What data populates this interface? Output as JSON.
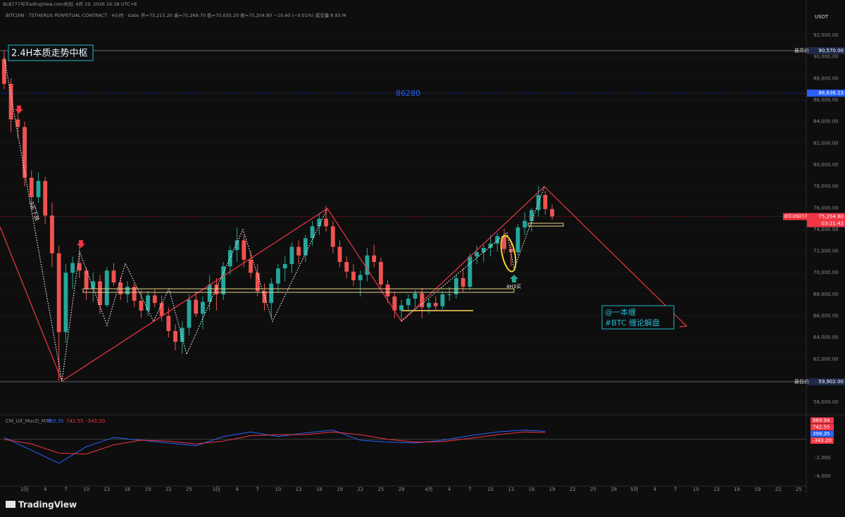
{
  "header": {
    "publisher": "BLB777与TradingView.com共创, 4月 19, 2026 16:38 UTC+8",
    "symbol_line": "BITCOIN · TETHERUS PERPETUAL CONTRACT · 4小时 · Gate",
    "ohlc_line": "开=75,215.20 高=75,269.70 低=75,035.20 收=75,204.80 −10.40 (−0.01%) 成交量 8.93 M"
  },
  "currency": "USDT",
  "footer": {
    "brand": "TradingView"
  },
  "annotations": {
    "center": "2.4H本质走势中枢",
    "level": "86280",
    "down": "3买下跌",
    "buy": "4H3买",
    "author": "@一本缠",
    "tag": "#BTC 缠论解盘"
  },
  "chart_data": [
    {
      "type": "candlestick",
      "up_color": "#26a69a",
      "down_color": "#ef5350",
      "x": [
        -3,
        -2,
        -1,
        0,
        1,
        2,
        3,
        4,
        5,
        6,
        7,
        8,
        9,
        10,
        11,
        12,
        13,
        14,
        15,
        16,
        17,
        18,
        19,
        20,
        21,
        22,
        23,
        24,
        25,
        26,
        27,
        28,
        29,
        30,
        31,
        32,
        33,
        34,
        35,
        36,
        37,
        38,
        39,
        40,
        41,
        42,
        43,
        44,
        45,
        46,
        47,
        48,
        49,
        50,
        51,
        52,
        53,
        54,
        55,
        56,
        57,
        58,
        59,
        60,
        61,
        62,
        63,
        64,
        65,
        66,
        67,
        68,
        69,
        70,
        71,
        72,
        73,
        74,
        75,
        76,
        77
      ],
      "ohlc": [
        [
          89800,
          90570,
          87000,
          87500
        ],
        [
          87500,
          88000,
          83000,
          84200
        ],
        [
          84200,
          85500,
          82500,
          83500
        ],
        [
          83500,
          84000,
          78000,
          78800
        ],
        [
          78800,
          79500,
          76000,
          77000
        ],
        [
          77000,
          79300,
          76500,
          78500
        ],
        [
          78500,
          78900,
          74500,
          75300
        ],
        [
          75300,
          76500,
          70500,
          71800
        ],
        [
          71800,
          72500,
          60000,
          64500
        ],
        [
          64500,
          70800,
          63500,
          70000
        ],
        [
          70000,
          71500,
          68500,
          70900
        ],
        [
          70900,
          72800,
          69500,
          70200
        ],
        [
          70200,
          70500,
          67500,
          68500
        ],
        [
          68500,
          70000,
          67300,
          69200
        ],
        [
          69200,
          69800,
          66200,
          67000
        ],
        [
          67000,
          70500,
          66800,
          70200
        ],
        [
          70200,
          70900,
          68800,
          69100
        ],
        [
          69100,
          69600,
          67500,
          68000
        ],
        [
          68000,
          69200,
          67200,
          68700
        ],
        [
          68700,
          69000,
          66800,
          67400
        ],
        [
          67400,
          68400,
          65800,
          66500
        ],
        [
          66500,
          68300,
          66000,
          67900
        ],
        [
          67900,
          68500,
          66800,
          67200
        ],
        [
          67200,
          67900,
          65500,
          66000
        ],
        [
          66000,
          66800,
          64000,
          64600
        ],
        [
          64600,
          65200,
          62800,
          63600
        ],
        [
          63600,
          65500,
          62500,
          64900
        ],
        [
          64900,
          68000,
          64200,
          67500
        ],
        [
          67500,
          68300,
          65900,
          66200
        ],
        [
          66200,
          67800,
          64800,
          67300
        ],
        [
          67300,
          69800,
          66500,
          68900
        ],
        [
          68900,
          69500,
          66500,
          68000
        ],
        [
          68000,
          71000,
          67500,
          70600
        ],
        [
          70600,
          72500,
          69800,
          72100
        ],
        [
          72100,
          74200,
          71000,
          73000
        ],
        [
          73000,
          73500,
          70500,
          71200
        ],
        [
          71200,
          72000,
          69500,
          70000
        ],
        [
          70000,
          70800,
          67800,
          68300
        ],
        [
          68300,
          69000,
          66500,
          67200
        ],
        [
          67200,
          69500,
          65800,
          69000
        ],
        [
          69000,
          70800,
          68200,
          70400
        ],
        [
          70400,
          71500,
          69200,
          70800
        ],
        [
          70800,
          72800,
          70000,
          72400
        ],
        [
          72400,
          73000,
          70800,
          71600
        ],
        [
          71600,
          73500,
          71000,
          73200
        ],
        [
          73200,
          74800,
          72500,
          74300
        ],
        [
          74300,
          75500,
          73500,
          75000
        ],
        [
          75000,
          76200,
          73800,
          74300
        ],
        [
          74300,
          74800,
          71800,
          72400
        ],
        [
          72400,
          73000,
          70500,
          71000
        ],
        [
          71000,
          71500,
          69500,
          70100
        ],
        [
          70100,
          70800,
          68800,
          69300
        ],
        [
          69300,
          70200,
          67800,
          69800
        ],
        [
          69800,
          72300,
          69200,
          71600
        ],
        [
          71600,
          72600,
          70500,
          71000
        ],
        [
          71000,
          71400,
          68500,
          68900
        ],
        [
          68900,
          69300,
          67200,
          67800
        ],
        [
          67800,
          68200,
          65800,
          66500
        ],
        [
          66500,
          67500,
          65500,
          67000
        ],
        [
          67000,
          68000,
          66400,
          67600
        ],
        [
          67600,
          68400,
          66800,
          68100
        ],
        [
          68100,
          68600,
          65800,
          66800
        ],
        [
          66800,
          67600,
          66200,
          67200
        ],
        [
          67200,
          67800,
          66500,
          66900
        ],
        [
          66900,
          68300,
          66600,
          68000
        ],
        [
          68000,
          68700,
          67400,
          68000
        ],
        [
          68000,
          69800,
          67600,
          69500
        ],
        [
          69500,
          70400,
          68200,
          68700
        ],
        [
          68700,
          71800,
          68400,
          71500
        ],
        [
          71500,
          72500,
          70800,
          71900
        ],
        [
          71900,
          72600,
          71000,
          72300
        ],
        [
          72300,
          73500,
          71500,
          72700
        ],
        [
          72700,
          73700,
          72000,
          73400
        ],
        [
          73400,
          74100,
          71800,
          72200
        ],
        [
          72200,
          72700,
          70600,
          71900
        ],
        [
          71900,
          74500,
          71600,
          74200
        ],
        [
          74200,
          75600,
          73500,
          74800
        ],
        [
          74800,
          76000,
          73800,
          75800
        ],
        [
          75800,
          78000,
          75200,
          77200
        ],
        [
          77200,
          77600,
          75400,
          75900
        ],
        [
          75900,
          76300,
          74900,
          75204.8
        ]
      ],
      "xlim": [
        -3.6,
        114.1
      ],
      "ylim": [
        56900,
        94350
      ],
      "yticks": [
        {
          "value": 92000,
          "label": "92,000.00"
        },
        {
          "value": 90000,
          "label": "90,000.00"
        },
        {
          "value": 88000,
          "label": "88,000.00"
        },
        {
          "value": 86000,
          "label": "86,000.00"
        },
        {
          "value": 84000,
          "label": "84,000.00"
        },
        {
          "value": 82000,
          "label": "82,000.00"
        },
        {
          "value": 80000,
          "label": "80,000.00"
        },
        {
          "value": 78000,
          "label": "78,000.00"
        },
        {
          "value": 76000,
          "label": "76,000.00"
        },
        {
          "value": 74000,
          "label": "74,000.00"
        },
        {
          "value": 72000,
          "label": "72,000.00"
        },
        {
          "value": 70000,
          "label": "70,000.00"
        },
        {
          "value": 68000,
          "label": "68,000.00"
        },
        {
          "value": 66000,
          "label": "66,000.00"
        },
        {
          "value": 64000,
          "label": "64,000.00"
        },
        {
          "value": 62000,
          "label": "62,000.00"
        },
        {
          "value": 60000,
          "label": "60,000.00"
        },
        {
          "value": 58000,
          "label": "58,000.00"
        }
      ],
      "xticks": [
        {
          "value": 0,
          "label": "2月"
        },
        {
          "value": 3,
          "label": "4"
        },
        {
          "value": 6,
          "label": "7"
        },
        {
          "value": 9,
          "label": "10"
        },
        {
          "value": 12,
          "label": "13"
        },
        {
          "value": 15,
          "label": "16"
        },
        {
          "value": 18,
          "label": "19"
        },
        {
          "value": 21,
          "label": "22"
        },
        {
          "value": 24,
          "label": "25"
        },
        {
          "value": 28,
          "label": "3月"
        },
        {
          "value": 31,
          "label": "4"
        },
        {
          "value": 34,
          "label": "7"
        },
        {
          "value": 37,
          "label": "10"
        },
        {
          "value": 40,
          "label": "13"
        },
        {
          "value": 43,
          "label": "16"
        },
        {
          "value": 46,
          "label": "19"
        },
        {
          "value": 49,
          "label": "22"
        },
        {
          "value": 52,
          "label": "25"
        },
        {
          "value": 55,
          "label": "28"
        },
        {
          "value": 59,
          "label": "4月"
        },
        {
          "value": 62,
          "label": "4"
        },
        {
          "value": 65,
          "label": "7"
        },
        {
          "value": 68,
          "label": "10"
        },
        {
          "value": 71,
          "label": "13"
        },
        {
          "value": 74,
          "label": "16"
        },
        {
          "value": 77,
          "label": "19"
        },
        {
          "value": 80,
          "label": "22"
        },
        {
          "value": 83,
          "label": "25"
        },
        {
          "value": 86,
          "label": "28"
        },
        {
          "value": 89,
          "label": "5月"
        },
        {
          "value": 92,
          "label": "4"
        },
        {
          "value": 95,
          "label": "7"
        },
        {
          "value": 98,
          "label": "10"
        },
        {
          "value": 101,
          "label": "13"
        },
        {
          "value": 104,
          "label": "16"
        },
        {
          "value": 107,
          "label": "19"
        },
        {
          "value": 110,
          "label": "22"
        },
        {
          "value": 113,
          "label": "25"
        }
      ],
      "price_lines": [
        {
          "name": "最高价",
          "value": 90570,
          "label": "90,570.00",
          "color": "#787b86"
        },
        {
          "value": 86636.23,
          "label": "86,636.23",
          "color": "#2962ff"
        },
        {
          "name": "最低价",
          "value": 59902,
          "label": "59,902.00",
          "color": "#787b86"
        }
      ],
      "last_price": {
        "symbol": "BTCUSDT.P",
        "value": 75204.8,
        "label": "75,204.80",
        "countdown": "03:21:42",
        "color": "#f23645"
      }
    },
    {
      "type": "line",
      "title": "CM_Ult_MacD_MTF",
      "readouts": [
        {
          "value": 399.35,
          "label": "399.35",
          "color": "#2962ff"
        },
        {
          "value": 742.55,
          "label": "742.55",
          "color": "#f23645"
        },
        {
          "value": -343.2,
          "label": "-343.20",
          "color": "#f23645"
        }
      ],
      "axis_tags": [
        {
          "value": 869.94,
          "label": "869.94",
          "color": "#f23645"
        },
        {
          "value": 742.55,
          "label": "742.55",
          "color": "#f23645"
        },
        {
          "value": 399.35,
          "label": "399.35",
          "color": "#2962ff"
        },
        {
          "value": -343.2,
          "label": "-343.20",
          "color": "#f23645"
        }
      ],
      "x": [
        -3,
        1,
        5,
        9,
        13,
        17,
        21,
        25,
        29,
        33,
        37,
        41,
        45,
        49,
        53,
        57,
        61,
        65,
        69,
        73,
        76
      ],
      "series": [
        {
          "color": "#2962ff",
          "values": [
            200,
            -1200,
            -2600,
            -800,
            200,
            -100,
            -400,
            -700,
            300,
            800,
            300,
            700,
            1000,
            -100,
            -300,
            -400,
            -100,
            400,
            800,
            1000,
            870
          ]
        },
        {
          "color": "#f23645",
          "values": [
            0,
            -500,
            -1500,
            -1600,
            -600,
            -100,
            -200,
            -500,
            -200,
            400,
            500,
            500,
            800,
            500,
            0,
            -300,
            -250,
            100,
            500,
            800,
            743
          ]
        }
      ],
      "xlim": [
        -3.6,
        114.1
      ],
      "ylim": [
        -4930,
        2430
      ],
      "yticks": [
        {
          "value": -2000,
          "label": "-2,000"
        },
        {
          "value": -4000,
          "label": "-4,000"
        }
      ]
    }
  ]
}
